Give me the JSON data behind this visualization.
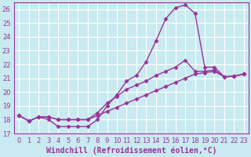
{
  "xlabel": "Windchill (Refroidissement éolien,°C)",
  "background_color": "#c8eaf0",
  "grid_color": "#ffffff",
  "line_color": "#993399",
  "xlim": [
    -0.5,
    23.5
  ],
  "ylim": [
    17.0,
    26.5
  ],
  "xticks": [
    0,
    1,
    2,
    3,
    4,
    5,
    6,
    7,
    8,
    9,
    10,
    11,
    12,
    13,
    14,
    15,
    16,
    17,
    18,
    19,
    20,
    21,
    22,
    23
  ],
  "yticks": [
    17,
    18,
    19,
    20,
    21,
    22,
    23,
    24,
    25,
    26
  ],
  "line1_x": [
    0,
    1,
    2,
    3,
    4,
    5,
    6,
    7,
    8,
    9,
    10,
    11,
    12,
    13,
    14,
    15,
    16,
    17,
    18,
    19,
    20,
    21,
    22,
    23
  ],
  "line1_y": [
    18.3,
    17.9,
    18.2,
    18.0,
    17.5,
    17.5,
    17.5,
    17.5,
    18.0,
    19.0,
    19.8,
    20.8,
    21.2,
    22.2,
    23.7,
    25.3,
    26.1,
    26.3,
    25.7,
    21.8,
    21.8,
    21.1,
    21.15,
    21.3
  ],
  "line2_x": [
    0,
    1,
    2,
    3,
    4,
    5,
    6,
    7,
    8,
    9,
    10,
    11,
    12,
    13,
    14,
    15,
    16,
    17,
    18,
    19,
    20,
    21,
    22,
    23
  ],
  "line2_y": [
    18.3,
    17.9,
    18.2,
    18.2,
    18.0,
    18.0,
    18.0,
    18.0,
    18.5,
    19.2,
    19.7,
    20.2,
    20.5,
    20.8,
    21.2,
    21.5,
    21.8,
    22.3,
    21.5,
    21.5,
    21.6,
    21.1,
    21.15,
    21.3
  ],
  "line3_x": [
    0,
    1,
    2,
    3,
    4,
    5,
    6,
    7,
    8,
    9,
    10,
    11,
    12,
    13,
    14,
    15,
    16,
    17,
    18,
    19,
    20,
    21,
    22,
    23
  ],
  "line3_y": [
    18.3,
    17.9,
    18.2,
    18.2,
    18.0,
    18.0,
    18.0,
    18.0,
    18.3,
    18.6,
    18.9,
    19.2,
    19.5,
    19.8,
    20.1,
    20.4,
    20.7,
    21.0,
    21.3,
    21.4,
    21.5,
    21.1,
    21.15,
    21.3
  ],
  "marker": "D",
  "markersize": 2.5,
  "linewidth": 1.0,
  "xlabel_fontsize": 7,
  "tick_fontsize": 6,
  "tick_color": "#993399",
  "label_color": "#993399"
}
